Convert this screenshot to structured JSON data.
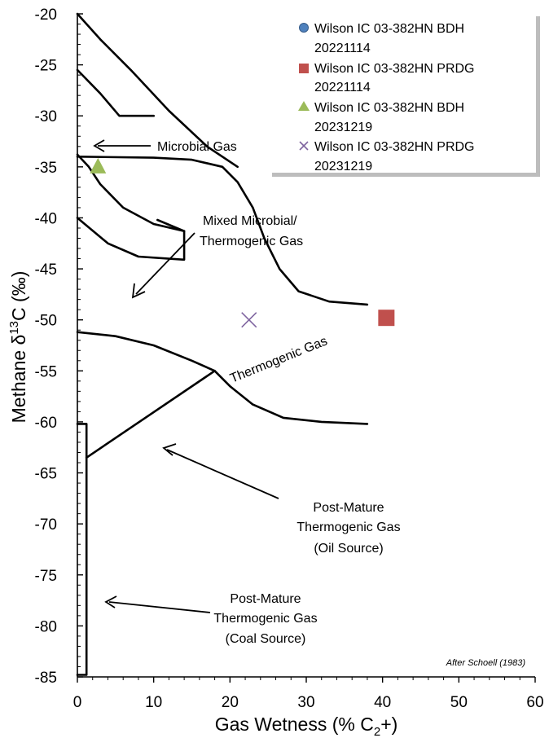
{
  "chart_data": {
    "type": "scatter",
    "x_axis": {
      "label_main": "Gas Wetness (% C",
      "label_sub": "2",
      "label_tail": "+)",
      "min": 0,
      "max": 60,
      "ticks": [
        "0",
        "10",
        "20",
        "30",
        "40",
        "50",
        "60"
      ]
    },
    "y_axis": {
      "label_main": "Methane  δ",
      "label_sup": "13",
      "label_tail": "C (‰)",
      "min": -85,
      "max": -20,
      "ticks": [
        "-85",
        "-80",
        "-75",
        "-70",
        "-65",
        "-60",
        "-55",
        "-50",
        "-45",
        "-40",
        "-35",
        "-30",
        "-25",
        "-20"
      ]
    },
    "series": [
      {
        "name": "Wilson IC 03-382HN BDH 20221114",
        "marker": "circle",
        "color": "#4F81BD",
        "points": []
      },
      {
        "name": "Wilson IC 03-382HN PRDG 20221114",
        "marker": "square",
        "color": "#C0504D",
        "points": [
          {
            "x": 40.5,
            "y": -49.8
          }
        ]
      },
      {
        "name": "Wilson IC 03-382HN BDH 20231219",
        "marker": "triangle",
        "color": "#9BBB59",
        "points": [
          {
            "x": 2.7,
            "y": -35.0
          }
        ]
      },
      {
        "name": "Wilson IC 03-382HN PRDG 20231219",
        "marker": "x",
        "color": "#7F65A0",
        "points": [
          {
            "x": 22.5,
            "y": -50.0
          }
        ]
      }
    ],
    "legend": {
      "position": "top-right",
      "entries": [
        {
          "line1": "Wilson IC 03-382HN BDH",
          "line2": "20221114"
        },
        {
          "line1": "Wilson IC 03-382HN PRDG",
          "line2": "20221114"
        },
        {
          "line1": "Wilson IC 03-382HN BDH",
          "line2": "20231219"
        },
        {
          "line1": "Wilson IC 03-382HN PRDG",
          "line2": "20231219"
        }
      ]
    },
    "regions": {
      "microbial": "Microbial Gas",
      "mixed": [
        "Mixed Microbial/",
        "Thermogenic Gas"
      ],
      "thermogenic": "Thermogenic Gas",
      "post_mature_oil": [
        "Post-Mature",
        "Thermogenic Gas",
        "(Oil Source)"
      ],
      "post_mature_coal": [
        "Post-Mature",
        "Thermogenic Gas",
        "(Coal Source)"
      ]
    },
    "credit": "After Schoell (1983)",
    "boundaries": [
      [
        [
          0,
          -84.8
        ],
        [
          1.2,
          -84.8
        ],
        [
          1.2,
          -60.2
        ],
        [
          0,
          -60.2
        ]
      ],
      [
        [
          1.2,
          -63.5
        ],
        [
          18,
          -55
        ]
      ],
      [
        [
          0,
          -51.2
        ],
        [
          5,
          -51.6
        ],
        [
          10,
          -52.5
        ],
        [
          15,
          -54.0
        ],
        [
          18,
          -55.0
        ],
        [
          20,
          -56.5
        ],
        [
          23,
          -58.3
        ],
        [
          27,
          -59.6
        ],
        [
          32,
          -60.0
        ],
        [
          38,
          -60.2
        ]
      ],
      [
        [
          0,
          -34.0
        ],
        [
          10,
          -34.1
        ],
        [
          15,
          -34.3
        ],
        [
          19,
          -35.0
        ],
        [
          21,
          -36.5
        ],
        [
          23,
          -39.0
        ],
        [
          24.5,
          -42.0
        ],
        [
          26.5,
          -45.0
        ],
        [
          29,
          -47.2
        ],
        [
          33,
          -48.2
        ],
        [
          38,
          -48.5
        ]
      ],
      [
        [
          0,
          -40.0
        ],
        [
          4,
          -42.5
        ],
        [
          8,
          -43.8
        ],
        [
          14,
          -44.1
        ],
        [
          14,
          -41.3
        ],
        [
          10,
          -40.6
        ],
        [
          6,
          -39.0
        ],
        [
          3,
          -36.7
        ],
        [
          1.5,
          -35.0
        ],
        [
          0,
          -33.8
        ]
      ],
      [
        [
          14,
          -41.3
        ],
        [
          10.5,
          -40.2
        ]
      ],
      [
        [
          0,
          -20.0
        ],
        [
          3,
          -22.5
        ],
        [
          7,
          -25.5
        ],
        [
          12,
          -29.5
        ],
        [
          17,
          -33.0
        ],
        [
          21,
          -35.0
        ]
      ],
      [
        [
          0,
          -25.5
        ],
        [
          3,
          -27.8
        ],
        [
          5.5,
          -30.0
        ],
        [
          10,
          -30.0
        ]
      ]
    ]
  }
}
